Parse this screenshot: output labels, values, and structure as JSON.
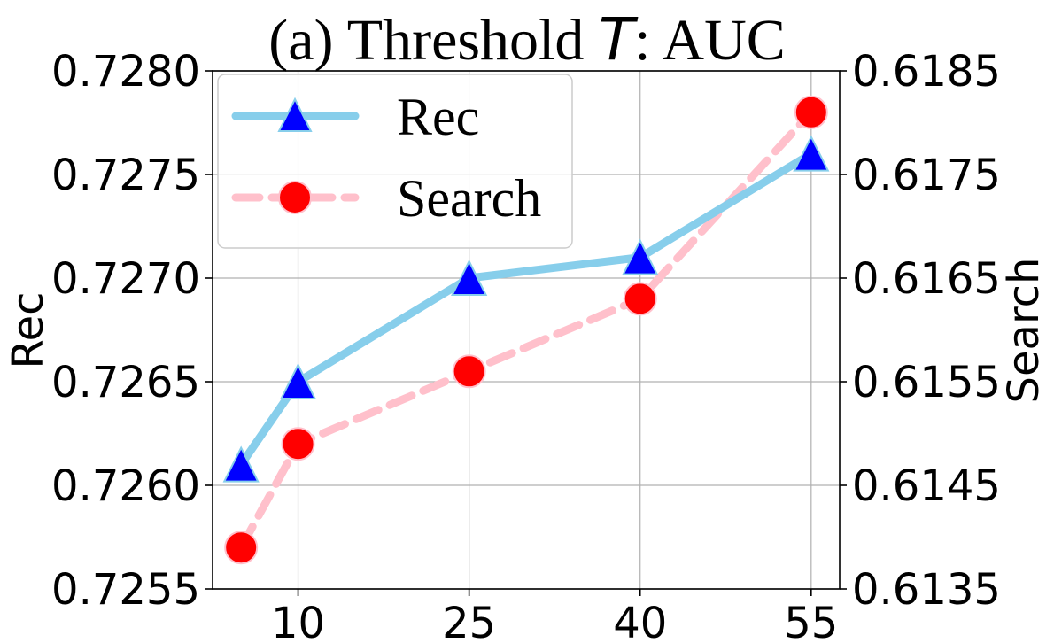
{
  "chart_data": {
    "type": "line",
    "title": {
      "prefix": "(a) Threshold ",
      "variable": "T",
      "suffix": ": AUC"
    },
    "x": [
      5,
      10,
      25,
      40,
      55
    ],
    "x_ticks": [
      10,
      25,
      40,
      55
    ],
    "x_tick_labels": [
      "10",
      "25",
      "40",
      "55"
    ],
    "xlim": [
      2.5,
      57.5
    ],
    "xlabel": "",
    "left_axis": {
      "label": "Rec",
      "ylim": [
        0.7255,
        0.728
      ],
      "ticks": [
        0.7255,
        0.726,
        0.7265,
        0.727,
        0.7275,
        0.728
      ],
      "tick_labels": [
        "0.7255",
        "0.7260",
        "0.7265",
        "0.7270",
        "0.7275",
        "0.7280"
      ]
    },
    "right_axis": {
      "label": "Search",
      "ylim": [
        0.6135,
        0.6185
      ],
      "ticks": [
        0.6135,
        0.6145,
        0.6155,
        0.6165,
        0.6175,
        0.6185
      ],
      "tick_labels": [
        "0.6135",
        "0.6145",
        "0.6155",
        "0.6165",
        "0.6175",
        "0.6185"
      ]
    },
    "series": [
      {
        "name": "Rec",
        "axis": "left",
        "values": [
          0.7261,
          0.7265,
          0.727,
          0.7271,
          0.7276
        ],
        "line_color": "#87ceeb",
        "marker": "triangle",
        "marker_color": "#0000ff",
        "line_style": "solid"
      },
      {
        "name": "Search",
        "axis": "right",
        "values": [
          0.6139,
          0.6149,
          0.6156,
          0.6163,
          0.6181
        ],
        "line_color": "#ffc0cb",
        "marker": "circle",
        "marker_color": "#ff0000",
        "line_style": "dashed"
      }
    ],
    "grid": true,
    "legend_position": "top-left"
  }
}
